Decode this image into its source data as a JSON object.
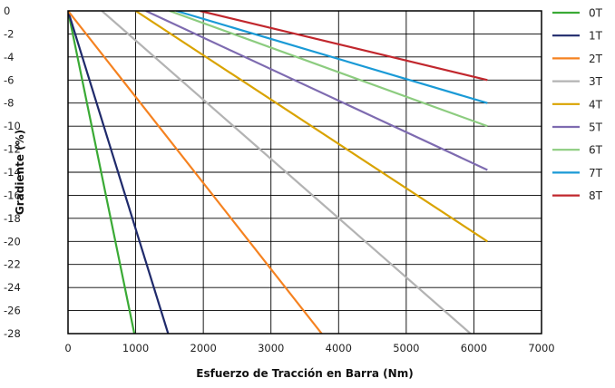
{
  "chart_data": {
    "type": "line",
    "title": "",
    "xlabel": "Esfuerzo de Tracción en Barra (Nm)",
    "ylabel": "Gradiente (%)",
    "xlim": [
      0,
      7000
    ],
    "ylim": [
      -28,
      0
    ],
    "xticks": [
      "0",
      "1000",
      "2000",
      "3000",
      "4000",
      "5000",
      "6000",
      "7000"
    ],
    "yticks": [
      "0",
      "-2",
      "-4",
      "-6",
      "-8",
      "-10",
      "-12",
      "-14",
      "-16",
      "-18",
      "-20",
      "-22",
      "-24",
      "-26",
      "-28"
    ],
    "grid": true,
    "legend_position": "right",
    "series": [
      {
        "name": "0T",
        "color": "#3aaa35",
        "points": [
          [
            0,
            0
          ],
          [
            980,
            -28
          ]
        ]
      },
      {
        "name": "1T",
        "color": "#1f2a6b",
        "points": [
          [
            0,
            0
          ],
          [
            1480,
            -28
          ]
        ]
      },
      {
        "name": "2T",
        "color": "#f58220",
        "points": [
          [
            0,
            0
          ],
          [
            3750,
            -28
          ]
        ]
      },
      {
        "name": "3T",
        "color": "#b3b3b3",
        "points": [
          [
            500,
            0
          ],
          [
            5950,
            -28
          ]
        ]
      },
      {
        "name": "4T",
        "color": "#d9a300",
        "points": [
          [
            1000,
            0
          ],
          [
            6200,
            -20
          ]
        ]
      },
      {
        "name": "5T",
        "color": "#7e6bb0",
        "points": [
          [
            1150,
            0
          ],
          [
            6200,
            -13.8
          ]
        ]
      },
      {
        "name": "6T",
        "color": "#8ccc7f",
        "points": [
          [
            1500,
            0
          ],
          [
            6200,
            -10
          ]
        ]
      },
      {
        "name": "7T",
        "color": "#1a9ad6",
        "points": [
          [
            1600,
            0
          ],
          [
            6200,
            -8
          ]
        ]
      },
      {
        "name": "8T",
        "color": "#c1272d",
        "points": [
          [
            1950,
            0
          ],
          [
            6200,
            -6
          ]
        ]
      }
    ]
  }
}
